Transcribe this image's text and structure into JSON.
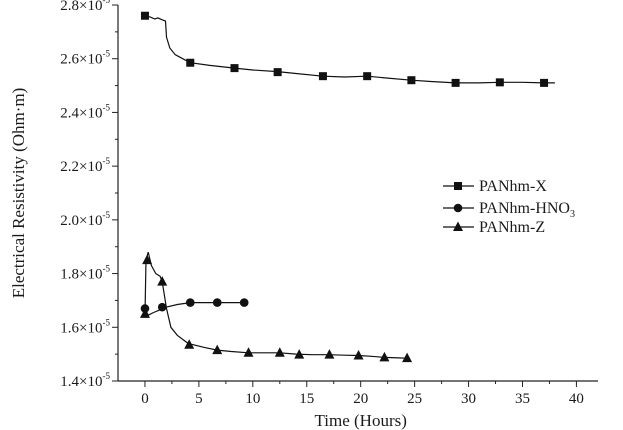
{
  "chart_data": {
    "type": "line",
    "title": "",
    "xlabel": "Time (Hours)",
    "ylabel": "Electrical Resistivity (Ohm·m)",
    "xlim": [
      -2.5,
      42
    ],
    "ylim": [
      1.4,
      2.8
    ],
    "y_exponent_label": "×10",
    "y_exponent": "-5",
    "x_ticks": [
      {
        "value": 0,
        "label": "0"
      },
      {
        "value": 5,
        "label": "5"
      },
      {
        "value": 10,
        "label": "10"
      },
      {
        "value": 15,
        "label": "15"
      },
      {
        "value": 20,
        "label": "20"
      },
      {
        "value": 25,
        "label": "25"
      },
      {
        "value": 30,
        "label": "30"
      },
      {
        "value": 35,
        "label": "35"
      },
      {
        "value": 40,
        "label": "40"
      }
    ],
    "y_ticks": [
      {
        "value": 1.4,
        "label": "1.4"
      },
      {
        "value": 1.6,
        "label": "1.6"
      },
      {
        "value": 1.8,
        "label": "1.8"
      },
      {
        "value": 2.0,
        "label": "2.0"
      },
      {
        "value": 2.2,
        "label": "2.2"
      },
      {
        "value": 2.4,
        "label": "2.4"
      },
      {
        "value": 2.6,
        "label": "2.6"
      },
      {
        "value": 2.8,
        "label": "2.8"
      }
    ],
    "grid": false,
    "legend_position": "right-middle",
    "series": [
      {
        "name": "PANhm-X",
        "marker": "square",
        "line": [
          [
            0,
            2.76
          ],
          [
            0.5,
            2.755
          ],
          [
            0.9,
            2.748
          ],
          [
            1.2,
            2.752
          ],
          [
            1.6,
            2.745
          ],
          [
            1.9,
            2.74
          ],
          [
            2.0,
            2.68
          ],
          [
            2.3,
            2.64
          ],
          [
            2.8,
            2.615
          ],
          [
            3.5,
            2.6
          ],
          [
            4.2,
            2.585
          ],
          [
            6,
            2.575
          ],
          [
            8.3,
            2.565
          ],
          [
            10,
            2.558
          ],
          [
            12.3,
            2.552
          ],
          [
            14,
            2.545
          ],
          [
            16.5,
            2.535
          ],
          [
            18.5,
            2.532
          ],
          [
            20.6,
            2.535
          ],
          [
            22.5,
            2.528
          ],
          [
            24.7,
            2.52
          ],
          [
            26.5,
            2.515
          ],
          [
            28.8,
            2.51
          ],
          [
            31,
            2.51
          ],
          [
            32.9,
            2.512
          ],
          [
            35,
            2.512
          ],
          [
            37,
            2.51
          ],
          [
            38,
            2.51
          ]
        ],
        "markers": [
          [
            0,
            2.76
          ],
          [
            4.2,
            2.585
          ],
          [
            8.3,
            2.565
          ],
          [
            12.3,
            2.55
          ],
          [
            16.5,
            2.535
          ],
          [
            20.6,
            2.535
          ],
          [
            24.7,
            2.52
          ],
          [
            28.8,
            2.51
          ],
          [
            32.9,
            2.512
          ],
          [
            37,
            2.51
          ]
        ]
      },
      {
        "name": "PANhm-HNO₃",
        "legend_base": "PANhm-HNO",
        "legend_sub": "3",
        "marker": "circle",
        "line": [
          [
            0,
            1.67
          ],
          [
            0.3,
            1.645
          ],
          [
            0.8,
            1.655
          ],
          [
            1.4,
            1.665
          ],
          [
            2.0,
            1.675
          ],
          [
            3.0,
            1.685
          ],
          [
            4.2,
            1.692
          ],
          [
            6.7,
            1.692
          ],
          [
            9.2,
            1.692
          ]
        ],
        "markers": [
          [
            0,
            1.67
          ],
          [
            1.6,
            1.675
          ],
          [
            4.2,
            1.692
          ],
          [
            6.7,
            1.692
          ],
          [
            9.2,
            1.692
          ]
        ]
      },
      {
        "name": "PANhm-Z",
        "marker": "triangle",
        "line": [
          [
            0,
            1.65
          ],
          [
            0.1,
            1.85
          ],
          [
            0.3,
            1.88
          ],
          [
            0.6,
            1.83
          ],
          [
            1.0,
            1.8
          ],
          [
            1.4,
            1.79
          ],
          [
            1.6,
            1.77
          ],
          [
            2.0,
            1.67
          ],
          [
            2.4,
            1.6
          ],
          [
            3.0,
            1.57
          ],
          [
            4,
            1.54
          ],
          [
            5.5,
            1.525
          ],
          [
            6.7,
            1.515
          ],
          [
            8,
            1.51
          ],
          [
            9.6,
            1.505
          ],
          [
            11,
            1.505
          ],
          [
            12.5,
            1.505
          ],
          [
            14,
            1.5
          ],
          [
            15.5,
            1.498
          ],
          [
            17,
            1.498
          ],
          [
            18.5,
            1.496
          ],
          [
            19.8,
            1.495
          ],
          [
            21,
            1.492
          ],
          [
            22.2,
            1.488
          ],
          [
            23.5,
            1.486
          ],
          [
            24.3,
            1.485
          ]
        ],
        "markers": [
          [
            0,
            1.65
          ],
          [
            0.2,
            1.85
          ],
          [
            1.6,
            1.77
          ],
          [
            4.1,
            1.535
          ],
          [
            6.7,
            1.515
          ],
          [
            9.6,
            1.505
          ],
          [
            12.5,
            1.505
          ],
          [
            14.3,
            1.498
          ],
          [
            17.1,
            1.498
          ],
          [
            19.8,
            1.495
          ],
          [
            22.2,
            1.488
          ],
          [
            24.3,
            1.485
          ]
        ]
      }
    ]
  }
}
